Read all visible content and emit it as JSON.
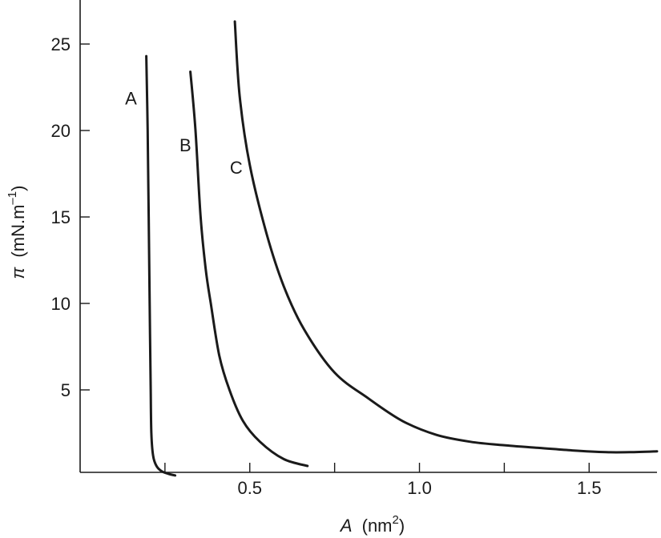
{
  "chart_data": {
    "type": "line",
    "title": "",
    "xlabel": {
      "symbol": "A",
      "unit_text": "(nm",
      "unit_sup": "2",
      "unit_close": ")"
    },
    "ylabel": {
      "symbol": "π",
      "unit_text": "(mN.m",
      "unit_sup": "–1",
      "unit_close": ")"
    },
    "xlim": [
      0,
      1.7
    ],
    "ylim": [
      0,
      27
    ],
    "x_ticks_minor": [
      0.25,
      0.75,
      1.25
    ],
    "x_ticks": [
      {
        "value": 0.5,
        "label": "0.5"
      },
      {
        "value": 1.0,
        "label": "1.0"
      },
      {
        "value": 1.5,
        "label": "1.5"
      }
    ],
    "y_ticks": [
      {
        "value": 5,
        "label": "5"
      },
      {
        "value": 10,
        "label": "10"
      },
      {
        "value": 15,
        "label": "15"
      },
      {
        "value": 20,
        "label": "20"
      },
      {
        "value": 25,
        "label": "25"
      }
    ],
    "grid": false,
    "legend": "none",
    "series": [
      {
        "name": "A",
        "label_at": [
          0.15,
          21.5
        ],
        "points": [
          [
            0.195,
            24.3
          ],
          [
            0.199,
            20
          ],
          [
            0.202,
            15
          ],
          [
            0.205,
            10
          ],
          [
            0.208,
            5
          ],
          [
            0.21,
            2.5
          ],
          [
            0.215,
            1.2
          ],
          [
            0.225,
            0.6
          ],
          [
            0.24,
            0.3
          ],
          [
            0.26,
            0.15
          ],
          [
            0.28,
            0.05
          ]
        ]
      },
      {
        "name": "B",
        "label_at": [
          0.31,
          18.8
        ],
        "points": [
          [
            0.325,
            23.4
          ],
          [
            0.34,
            20
          ],
          [
            0.355,
            15
          ],
          [
            0.37,
            12
          ],
          [
            0.385,
            10
          ],
          [
            0.41,
            7
          ],
          [
            0.44,
            5
          ],
          [
            0.48,
            3.2
          ],
          [
            0.53,
            2
          ],
          [
            0.6,
            1
          ],
          [
            0.67,
            0.6
          ]
        ]
      },
      {
        "name": "C",
        "label_at": [
          0.46,
          17.5
        ],
        "points": [
          [
            0.456,
            26.3
          ],
          [
            0.47,
            22
          ],
          [
            0.5,
            18
          ],
          [
            0.55,
            14
          ],
          [
            0.6,
            11
          ],
          [
            0.66,
            8.5
          ],
          [
            0.75,
            6
          ],
          [
            0.85,
            4.5
          ],
          [
            0.95,
            3.2
          ],
          [
            1.05,
            2.4
          ],
          [
            1.15,
            2
          ],
          [
            1.25,
            1.8
          ],
          [
            1.35,
            1.65
          ],
          [
            1.45,
            1.5
          ],
          [
            1.55,
            1.4
          ],
          [
            1.62,
            1.4
          ],
          [
            1.7,
            1.45
          ]
        ]
      }
    ]
  }
}
